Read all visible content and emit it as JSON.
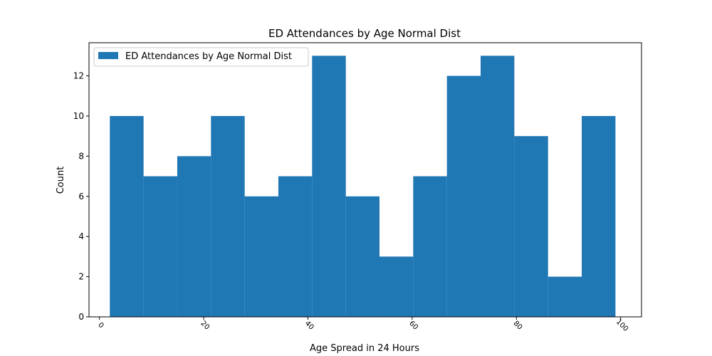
{
  "chart_data": {
    "type": "bar",
    "title": "ED Attendances by Age Normal Dist",
    "xlabel": "Age Spread in 24 Hours",
    "ylabel": "Count",
    "legend": {
      "label": "ED Attendances by Age Normal Dist",
      "placement": "top-left"
    },
    "bar_color": "#1f77b4",
    "grid": false,
    "xlim": [
      -2,
      104
    ],
    "ylim": [
      0,
      13.65
    ],
    "x_ticks": [
      0,
      20,
      40,
      60,
      80,
      100
    ],
    "x_tick_labels": [
      "0",
      "20",
      "40",
      "60",
      "80",
      "100"
    ],
    "y_ticks": [
      0,
      2,
      4,
      6,
      8,
      10,
      12
    ],
    "y_tick_labels": [
      "0",
      "2",
      "4",
      "6",
      "8",
      "10",
      "12"
    ],
    "bin_edges": [
      2,
      8.47,
      14.93,
      21.4,
      27.87,
      34.33,
      40.8,
      47.27,
      53.73,
      60.2,
      66.67,
      73.13,
      79.6,
      86.07,
      92.53,
      99
    ],
    "values": [
      10,
      7,
      8,
      10,
      6,
      7,
      13,
      6,
      3,
      7,
      12,
      13,
      9,
      2,
      10
    ]
  }
}
